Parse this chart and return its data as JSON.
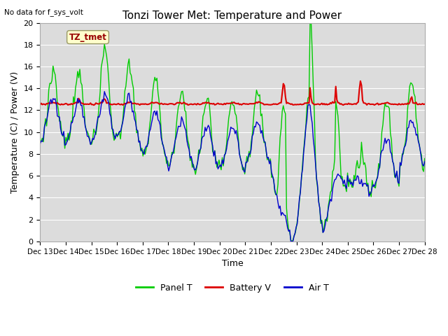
{
  "title": "Tonzi Tower Met: Temperature and Power",
  "top_left_note": "No data for f_sys_volt",
  "xlabel": "Time",
  "ylabel": "Temperature (C) / Power (V)",
  "ylim": [
    0,
    20
  ],
  "yticks": [
    0,
    2,
    4,
    6,
    8,
    10,
    12,
    14,
    16,
    18,
    20
  ],
  "xtick_labels": [
    "Dec 13",
    "Dec 14",
    "Dec 15",
    "Dec 16",
    "Dec 17",
    "Dec 18",
    "Dec 19",
    "Dec 20",
    "Dec 21",
    "Dec 22",
    "Dec 23",
    "Dec 24",
    "Dec 25",
    "Dec 26",
    "Dec 27",
    "Dec 28"
  ],
  "legend_entries": [
    "Panel T",
    "Battery V",
    "Air T"
  ],
  "panel_color": "#00cc00",
  "battery_color": "#dd0000",
  "air_color": "#0000cc",
  "bg_color": "#dcdcdc",
  "grid_color": "#ffffff",
  "annotation_label": "TZ_tmet",
  "annotation_color": "#990000",
  "annotation_bg": "#ffffcc",
  "annotation_border": "#999966"
}
